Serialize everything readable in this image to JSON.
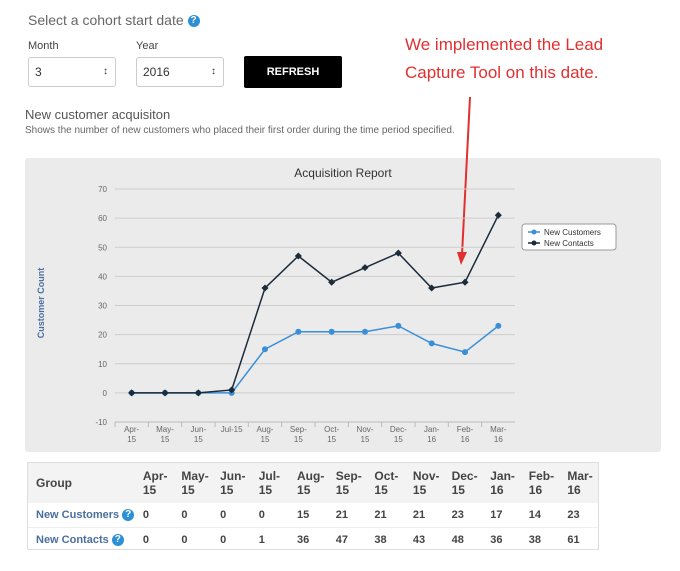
{
  "header": {
    "title": "Select a cohort start date",
    "month_label": "Month",
    "month_value": "3",
    "year_label": "Year",
    "year_value": "2016",
    "refresh": "REFRESH"
  },
  "annotation": [
    "We implemented the Lead",
    "Capture Tool on this date."
  ],
  "section": {
    "title": "New customer acquisiton",
    "subtitle": "Shows the number of new customers who placed their first order during the time period specified."
  },
  "chart_data": {
    "type": "line",
    "title": "Acquisition Report",
    "y_label": "Customer Count",
    "categories": [
      "Apr-15",
      "May-15",
      "Jun-15",
      "Jul-15",
      "Aug-15",
      "Sep-15",
      "Oct-15",
      "Nov-15",
      "Dec-15",
      "Jan-16",
      "Feb-16",
      "Mar-16"
    ],
    "series": [
      {
        "name": "New Customers",
        "color": "#3a8fd8",
        "values": [
          0,
          0,
          0,
          0,
          15,
          21,
          21,
          21,
          23,
          17,
          14,
          23
        ]
      },
      {
        "name": "New Contacts",
        "color": "#1c2b3a",
        "values": [
          0,
          0,
          0,
          1,
          36,
          47,
          38,
          43,
          48,
          36,
          38,
          61
        ]
      }
    ],
    "ylim": [
      -10,
      70
    ],
    "yticks": [
      -10,
      0,
      10,
      20,
      30,
      40,
      50,
      60,
      70
    ],
    "grid": true
  },
  "table": {
    "header": "Group"
  }
}
